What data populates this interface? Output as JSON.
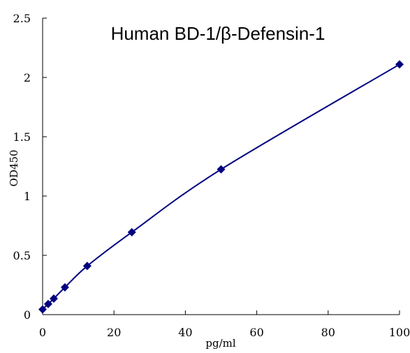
{
  "chart_data": {
    "type": "scatter",
    "title": "Human BD-1/β-Defensin-1",
    "xlabel": "pg/ml",
    "ylabel": "OD450",
    "xlim": [
      0,
      100
    ],
    "ylim": [
      0,
      2.5
    ],
    "x_ticks": [
      0,
      20,
      40,
      60,
      80,
      100
    ],
    "x_tick_labels": [
      "0",
      "20",
      "40",
      "60",
      "80",
      "100"
    ],
    "y_ticks": [
      0,
      0.5,
      1,
      1.5,
      2,
      2.5
    ],
    "y_tick_labels": [
      "0",
      "0.5",
      "1",
      "1.5",
      "2",
      "2.5"
    ],
    "grid": false,
    "legend": "none",
    "series": [
      {
        "color": "#000080",
        "marker": "diamond",
        "line": "smooth",
        "x": [
          0,
          1.56,
          3.13,
          6.25,
          12.5,
          25,
          50,
          100
        ],
        "y": [
          0.044,
          0.09,
          0.135,
          0.23,
          0.41,
          0.695,
          1.225,
          2.11
        ]
      }
    ]
  }
}
